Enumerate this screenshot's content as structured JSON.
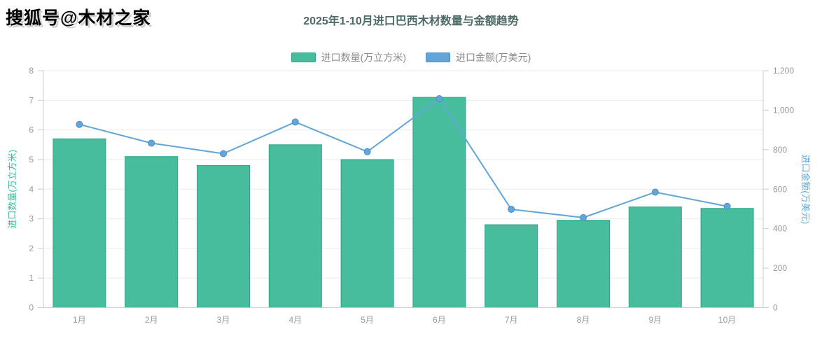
{
  "page": {
    "watermark": "搜狐号@木材之家"
  },
  "colors": {
    "title": "#4d6a66",
    "axis_text": "#999999",
    "axis_line": "#cccccc",
    "grid_line": "#ebebeb",
    "bar_fill": "#47bd9d",
    "bar_border": "#2aa586",
    "line_color": "#62a6d9",
    "line_point_border": "#4a8ec8",
    "left_axis_name": "#3cbd9a",
    "right_axis_name": "#5fa8dd"
  },
  "chart_data": {
    "type": "bar",
    "combo": "bar+line dual-axis",
    "title": "2025年1-10月进口巴西木材数量与金额趋势",
    "categories": [
      "1月",
      "2月",
      "3月",
      "4月",
      "5月",
      "6月",
      "7月",
      "8月",
      "9月",
      "10月"
    ],
    "series": [
      {
        "name": "进口数量(万立方米)",
        "type": "bar",
        "yaxis": "left",
        "color": "#47bd9d",
        "border_color": "#2aa586",
        "values": [
          5.7,
          5.1,
          4.8,
          5.5,
          5.0,
          7.1,
          2.8,
          2.95,
          3.4,
          3.35
        ]
      },
      {
        "name": "进口金额(万美元)",
        "type": "line",
        "yaxis": "right",
        "color": "#62a6d9",
        "border_color": "#4a8ec8",
        "values": [
          928,
          833,
          780,
          940,
          790,
          1058,
          498,
          456,
          585,
          513
        ]
      }
    ],
    "left_axis": {
      "name": "进口数量(万立方米)",
      "min": 0,
      "max": 8,
      "step": 1,
      "ticks": [
        "0",
        "1",
        "2",
        "3",
        "4",
        "5",
        "6",
        "7",
        "8"
      ]
    },
    "right_axis": {
      "name": "进口金额(万美元)",
      "min": 0,
      "max": 1200,
      "step": 200,
      "ticks": [
        "0",
        "200",
        "400",
        "600",
        "800",
        "1,000",
        "1,200"
      ]
    },
    "grid": true,
    "legend_position": "top-center"
  }
}
